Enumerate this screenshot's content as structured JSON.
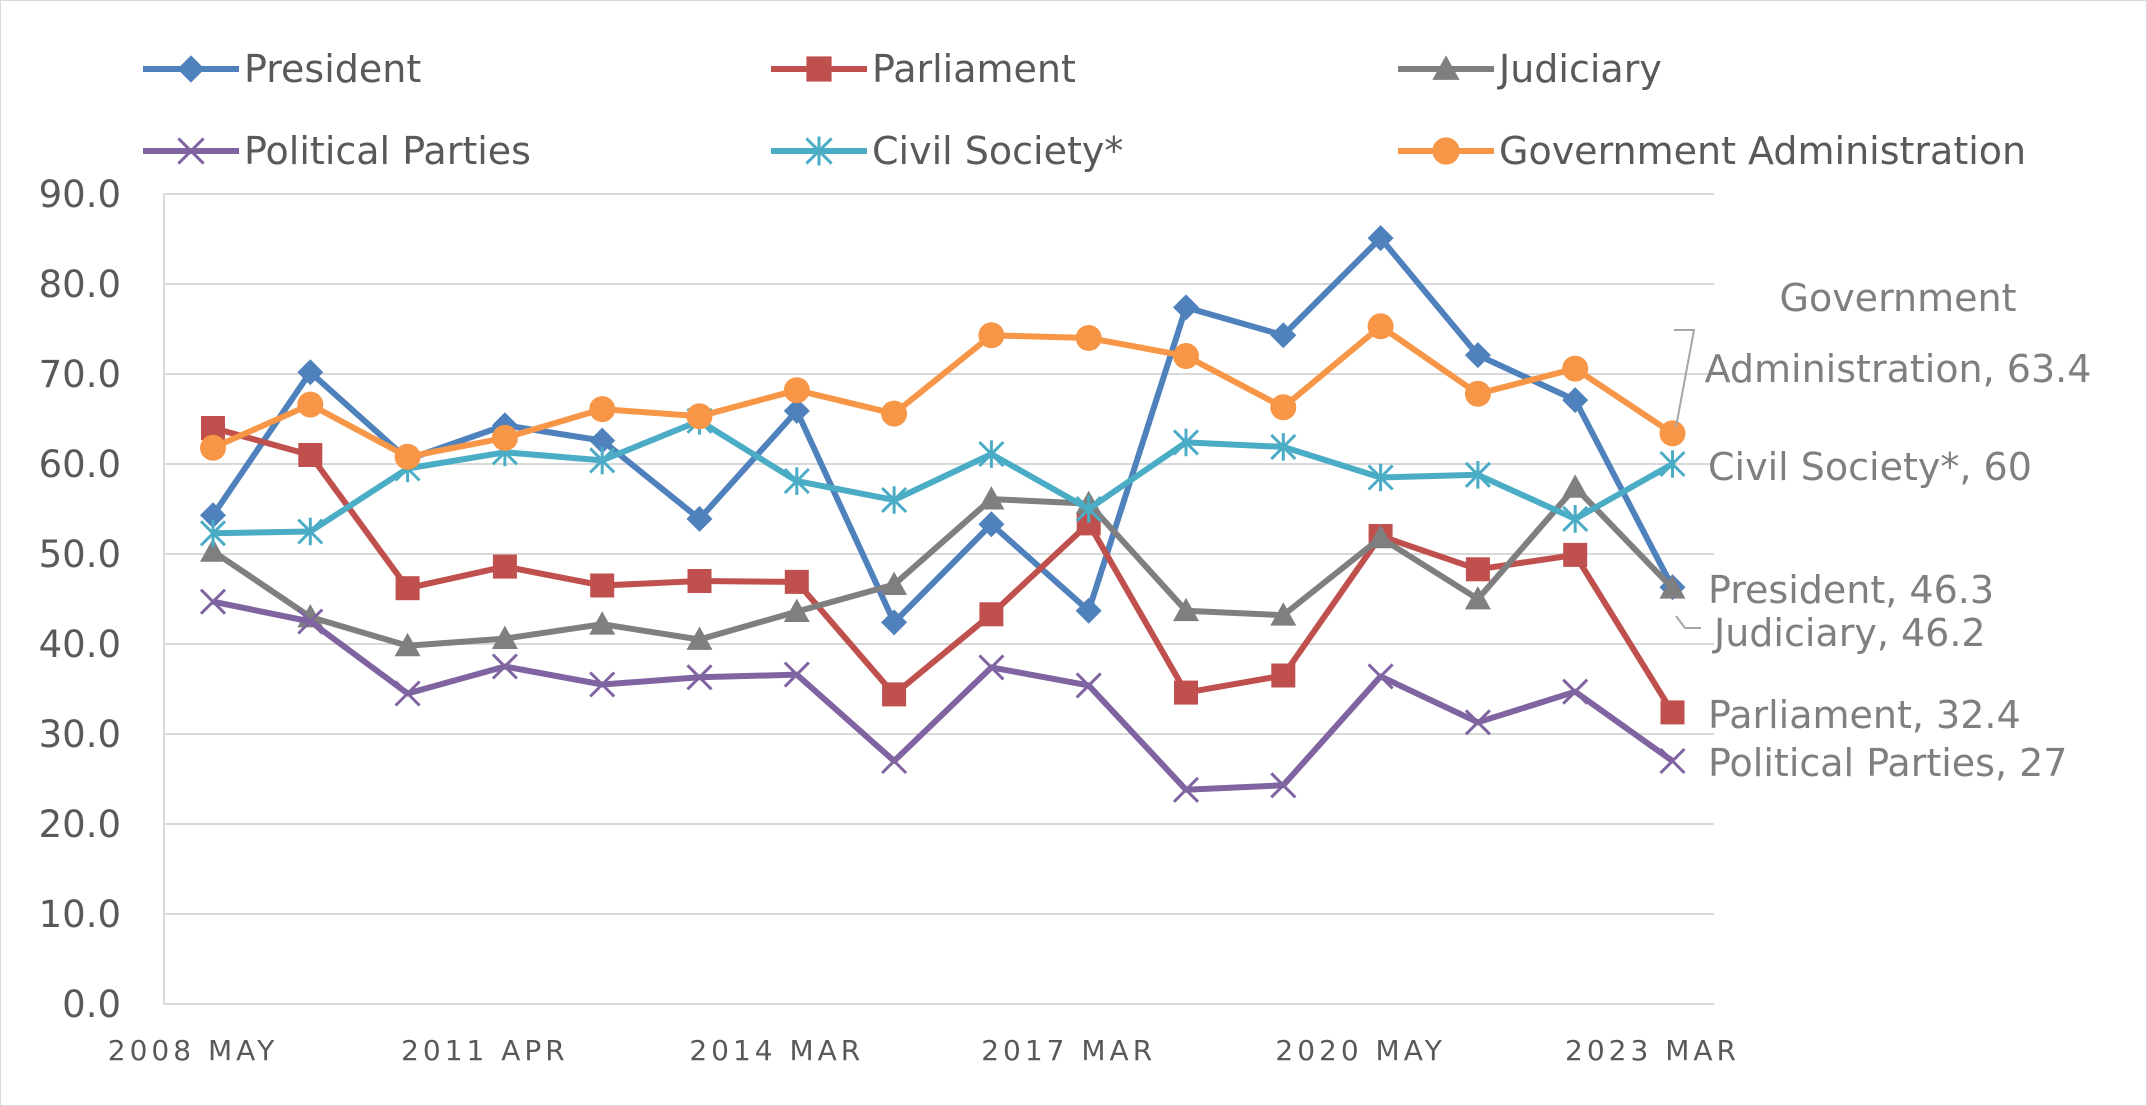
{
  "chart_data": {
    "type": "line",
    "x": [
      "2008 MAY",
      "",
      "",
      "2011 APR",
      "",
      "",
      "2014 MAR",
      "",
      "",
      "2017 MAR",
      "",
      "",
      "2020 MAY",
      "",
      "",
      "2023 MAR"
    ],
    "yticks": [
      "0.0",
      "10.0",
      "20.0",
      "30.0",
      "40.0",
      "50.0",
      "60.0",
      "70.0",
      "80.0",
      "90.0"
    ],
    "ylim": [
      0,
      90
    ],
    "grid": true,
    "legend_position": "top",
    "series": [
      {
        "name": "President",
        "color": "#4f81bd",
        "marker": "diamond",
        "values": [
          54.3,
          70.2,
          60.5,
          64.3,
          62.6,
          53.9,
          65.9,
          42.4,
          53.3,
          43.7,
          77.4,
          74.3,
          85.1,
          72.1,
          67.1,
          46.3
        ]
      },
      {
        "name": "Parliament",
        "color": "#c0504d",
        "marker": "square",
        "values": [
          64.0,
          61.0,
          46.2,
          48.6,
          46.5,
          47.0,
          46.9,
          34.4,
          43.3,
          53.4,
          34.6,
          36.5,
          52.0,
          48.3,
          49.9,
          32.4
        ]
      },
      {
        "name": "Judiciary",
        "color": "#7f7f7f",
        "marker": "triangle",
        "values": [
          50.3,
          43.0,
          39.8,
          40.6,
          42.2,
          40.5,
          43.6,
          46.6,
          56.1,
          55.6,
          43.7,
          43.2,
          51.8,
          45.0,
          57.4,
          46.2
        ]
      },
      {
        "name": "Political Parties",
        "color": "#8064a2",
        "marker": "x",
        "values": [
          44.7,
          42.5,
          34.5,
          37.5,
          35.5,
          36.3,
          36.6,
          27.0,
          37.4,
          35.4,
          23.8,
          24.3,
          36.4,
          31.3,
          34.7,
          27.0
        ]
      },
      {
        "name": "Civil Society*",
        "color": "#4bacc6",
        "marker": "asterisk",
        "values": [
          52.3,
          52.5,
          59.5,
          61.3,
          60.4,
          64.8,
          58.1,
          56.0,
          61.1,
          55.0,
          62.4,
          61.9,
          58.5,
          58.8,
          53.9,
          60.0
        ]
      },
      {
        "name": "Government Administration",
        "color": "#f79646",
        "marker": "circle",
        "values": [
          61.8,
          66.6,
          60.8,
          62.9,
          66.1,
          65.3,
          68.2,
          65.6,
          74.3,
          74.0,
          72.0,
          66.3,
          75.3,
          67.8,
          70.6,
          63.4
        ]
      }
    ],
    "end_labels": {
      "gov_line1": "Government",
      "gov_line2": "Administration, 63.4",
      "civil": "Civil Society*, 60",
      "president": "President, 46.3",
      "judiciary": "Judiciary, 46.2",
      "parliament": "Parliament, 32.4",
      "parties": "Political Parties, 27"
    }
  }
}
